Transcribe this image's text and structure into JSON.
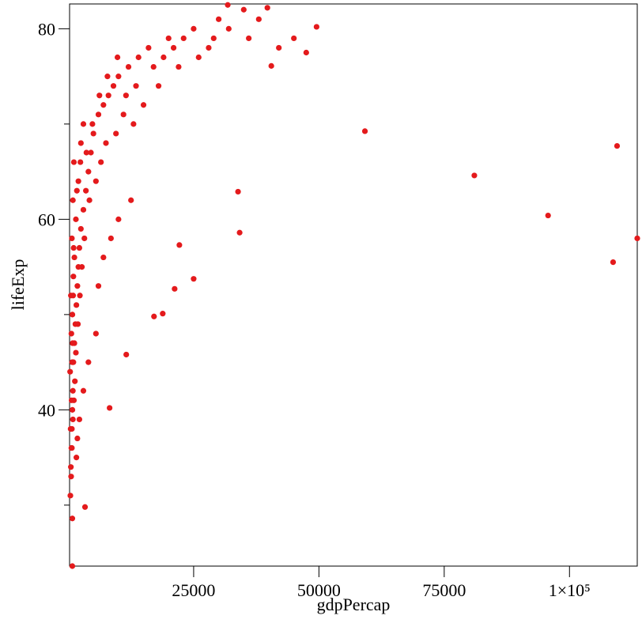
{
  "chart_data": {
    "type": "scatter",
    "x_label": "gdpPercap",
    "y_label": "lifeExp",
    "color": "#e41a1c",
    "xlim": [
      241,
      113523
    ],
    "ylim": [
      23.599,
      82.603
    ],
    "xticks": [
      25000,
      50000,
      75000,
      {
        "value": 100000,
        "label": "1×10⁵"
      }
    ],
    "yticks": [
      40,
      60,
      80
    ],
    "yminorticks": [
      30,
      50,
      70
    ],
    "x": [
      59177,
      81013,
      95728,
      109494,
      108703,
      113523,
      33861,
      34177,
      25000,
      22152,
      21203,
      18830,
      17089,
      11551,
      8228,
      3323,
      791,
      791,
      49525,
      47468,
      39715,
      31804,
      40500,
      400,
      500,
      600,
      700,
      800,
      900,
      350,
      1000,
      1200,
      600,
      1400,
      800,
      1600,
      500,
      1800,
      1000,
      2000,
      1200,
      2200,
      700,
      2500,
      1500,
      3000,
      900,
      3500,
      2000,
      4000,
      1100,
      4500,
      2500,
      5000,
      3000,
      6000,
      7000,
      8000,
      9000,
      10000,
      12000,
      14000,
      16000,
      20000,
      25000,
      30000,
      35000,
      28000,
      22000,
      18000,
      15000,
      13000,
      11000,
      9500,
      7500,
      6500,
      5500,
      4200,
      3200,
      2700,
      2300,
      1900,
      1500,
      1300,
      1100,
      900,
      700,
      550,
      450,
      650,
      750,
      850,
      950,
      1050,
      1700,
      2400,
      3600,
      4800,
      6200,
      7800,
      9800,
      11500,
      13500,
      17000,
      19000,
      21000,
      23000,
      26000,
      29000,
      32000,
      36000,
      38000,
      42000,
      45000,
      4000,
      5500,
      6000,
      7000,
      8500,
      10000,
      12500,
      3000,
      2200,
      1800,
      1600
    ],
    "values": [
      69.25,
      64.6,
      60.4,
      67.7,
      55.5,
      58.0,
      62.9,
      58.6,
      53.75,
      57.3,
      52.7,
      50.1,
      49.8,
      45.8,
      40.2,
      29.8,
      23.6,
      28.6,
      80.2,
      77.5,
      82.2,
      82.5,
      76.1,
      31,
      34,
      36,
      38,
      40,
      42,
      44,
      45,
      47,
      48,
      49,
      50,
      51,
      52,
      53,
      54,
      55,
      56,
      57,
      58,
      59,
      60,
      61,
      62,
      63,
      64,
      65,
      66,
      67,
      68,
      69,
      70,
      71,
      72,
      73,
      74,
      75,
      76,
      77,
      78,
      79,
      80,
      81,
      82,
      78,
      76,
      74,
      72,
      70,
      71,
      69,
      68,
      66,
      64,
      62,
      58,
      55,
      52,
      49,
      46,
      43,
      41,
      39,
      36,
      33,
      38,
      41,
      45,
      47,
      52,
      57,
      63,
      66,
      67,
      70,
      73,
      75,
      77,
      73,
      74,
      76,
      77,
      78,
      79,
      77,
      79,
      80,
      79,
      81,
      78,
      79,
      45,
      48,
      53,
      56,
      58,
      60,
      62,
      42,
      39,
      37,
      35
    ]
  }
}
